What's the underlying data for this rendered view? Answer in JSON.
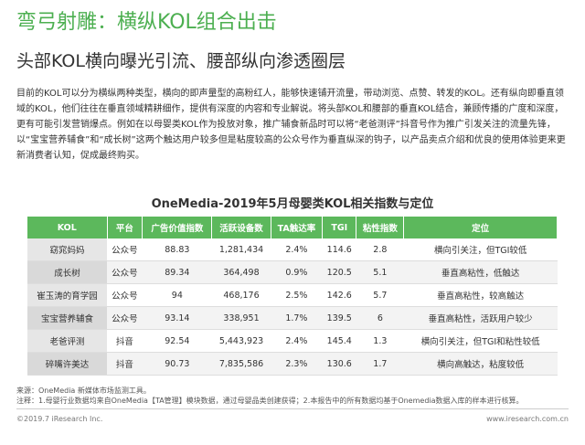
{
  "header": {
    "title": "弯弓射雕：横纵KOL组合出击",
    "subtitle": "头部KOL横向曝光引流、腰部纵向渗透圈层"
  },
  "body": {
    "paragraph": "目前的KOL可以分为横纵两种类型，横向的即声量型的高粉红人，能够快速铺开流量，带动浏览、点赞、转发的KOL。还有纵向即垂直领域的KOL，他们往往在垂直领域精耕细作，提供有深度的内容和专业解说。将头部KOL和腰部的垂直KOL结合，兼顾传播的广度和深度，更有可能引发营销爆点。例如在以母婴类KOL作为投放对象，推广辅食新品时可以将“老爸测评”抖音号作为推广引发关注的流量先锋，以“宝宝营养辅食”和“成长树”这两个触达用户较多但是粘度较高的公众号作为垂直纵深的钩子，以产品卖点介绍和优良的使用体验更来更新消费者认知，促成最终购买。"
  },
  "table": {
    "title": "OneMedia-2019年5月母婴类KOL相关指数与定位",
    "columns": [
      "KOL",
      "平台",
      "广告价值指数",
      "活跃设备数",
      "TA触达率",
      "TGI",
      "粘性指数",
      "定位"
    ],
    "rows": [
      [
        "窈窕妈妈",
        "公众号",
        "88.83",
        "1,281,434",
        "2.4%",
        "114.6",
        "2.8",
        "横向引关注，但TGI较低"
      ],
      [
        "成长树",
        "公众号",
        "89.34",
        "364,498",
        "0.9%",
        "120.5",
        "5.1",
        "垂直高粘性，低触达"
      ],
      [
        "崔玉涛的育学园",
        "公众号",
        "94",
        "468,176",
        "2.5%",
        "142.6",
        "5.7",
        "垂直高粘性，较高触达"
      ],
      [
        "宝宝营养辅食",
        "公众号",
        "93.14",
        "338,951",
        "1.7%",
        "139.5",
        "6",
        "垂直高粘性，活跃用户较少"
      ],
      [
        "老爸评测",
        "抖音",
        "92.54",
        "5,443,923",
        "2.4%",
        "145.4",
        "1.3",
        "横向引关注，但TGI和粘性较低"
      ],
      [
        "碎嘴许美达",
        "抖音",
        "90.73",
        "7,835,586",
        "2.3%",
        "130.6",
        "1.7",
        "横向高触达，粘度较低"
      ]
    ]
  },
  "footer": {
    "source": "来源：OneMedia 新媒体市场监测工具。",
    "note": "注释：1.母婴行业数据均来自OneMedia【TA管理】模块数据，通过母婴品类创建获得；2.本报告中的所有数据均基于Onemedia数据入库的样本进行核算。",
    "copyright": "©2019.7 iResearch Inc.",
    "website": "www.iresearch.com.cn"
  }
}
